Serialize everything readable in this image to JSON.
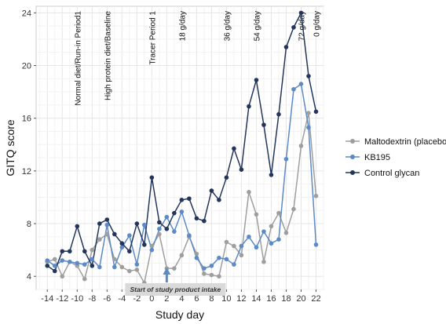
{
  "chart_data": {
    "type": "line",
    "xlabel": "Study day",
    "ylabel": "GITQ score",
    "xlim": [
      -15.5,
      23
    ],
    "ylim": [
      3,
      24.5
    ],
    "x_ticks": [
      -14,
      -12,
      -10,
      -8,
      -6,
      -4,
      -2,
      0,
      2,
      4,
      6,
      8,
      10,
      12,
      14,
      16,
      18,
      20,
      22
    ],
    "y_ticks": [
      4,
      8,
      12,
      16,
      20,
      24
    ],
    "grid": true,
    "legend_position": "right",
    "x": [
      -14,
      -13,
      -12,
      -11,
      -10,
      -9,
      -8,
      -7,
      -6,
      -5,
      -4,
      -3,
      -2,
      -1,
      0,
      1,
      2,
      3,
      4,
      5,
      6,
      7,
      8,
      9,
      10,
      11,
      12,
      13,
      14,
      15,
      16,
      17,
      18,
      19,
      20,
      21,
      22
    ],
    "series": [
      {
        "name": "Maltodextrin (placebo)",
        "color": "#9e9e9e",
        "values": [
          5.1,
          5.3,
          4.0,
          5.1,
          4.8,
          3.8,
          6.0,
          6.8,
          7.2,
          5.3,
          4.7,
          4.4,
          4.5,
          3.5,
          6.3,
          7.2,
          4.6,
          4.6,
          5.6,
          7.0,
          5.7,
          4.2,
          4.1,
          4.0,
          6.6,
          6.3,
          5.6,
          10.4,
          8.7,
          5.1,
          7.8,
          8.8,
          7.3,
          9.1,
          13.9,
          16.4,
          10.1
        ]
      },
      {
        "name": "KB195",
        "color": "#5b8ac6",
        "values": [
          5.2,
          4.8,
          5.2,
          5.1,
          5.0,
          4.9,
          5.3,
          4.7,
          7.9,
          4.7,
          6.2,
          7.1,
          4.9,
          7.9,
          6.0,
          7.6,
          8.5,
          7.4,
          8.9,
          7.1,
          5.4,
          4.6,
          4.8,
          5.4,
          5.3,
          4.9,
          6.3,
          7.0,
          6.2,
          7.4,
          6.5,
          6.8,
          12.9,
          18.2,
          18.6,
          15.3,
          6.4
        ]
      },
      {
        "name": "Control glycan",
        "color": "#24355c",
        "values": [
          4.8,
          4.4,
          5.9,
          5.9,
          7.8,
          5.9,
          4.8,
          8.0,
          8.3,
          7.2,
          6.5,
          5.9,
          8.0,
          6.4,
          11.5,
          8.1,
          7.6,
          8.8,
          9.8,
          9.9,
          8.4,
          8.2,
          10.5,
          9.8,
          11.5,
          13.7,
          12.1,
          16.9,
          18.9,
          15.5,
          11.7,
          16.3,
          21.4,
          22.9,
          24.0,
          19.2,
          16.5
        ]
      }
    ],
    "annotations": [
      {
        "x": -10,
        "text": "Normal diet/Run-in Period1"
      },
      {
        "x": -6,
        "text": "High protein diet/Baseline"
      },
      {
        "x": 0,
        "text": "Tracer Period 1"
      },
      {
        "x": 4,
        "text": "18 g/day"
      },
      {
        "x": 10,
        "text": "36 g/day"
      },
      {
        "x": 14,
        "text": "54 g/day"
      },
      {
        "x": 20,
        "text": "72 g/day"
      },
      {
        "x": 22,
        "text": "0 g/day"
      }
    ],
    "note": {
      "x": 2,
      "text": "Start of study product intake"
    }
  }
}
